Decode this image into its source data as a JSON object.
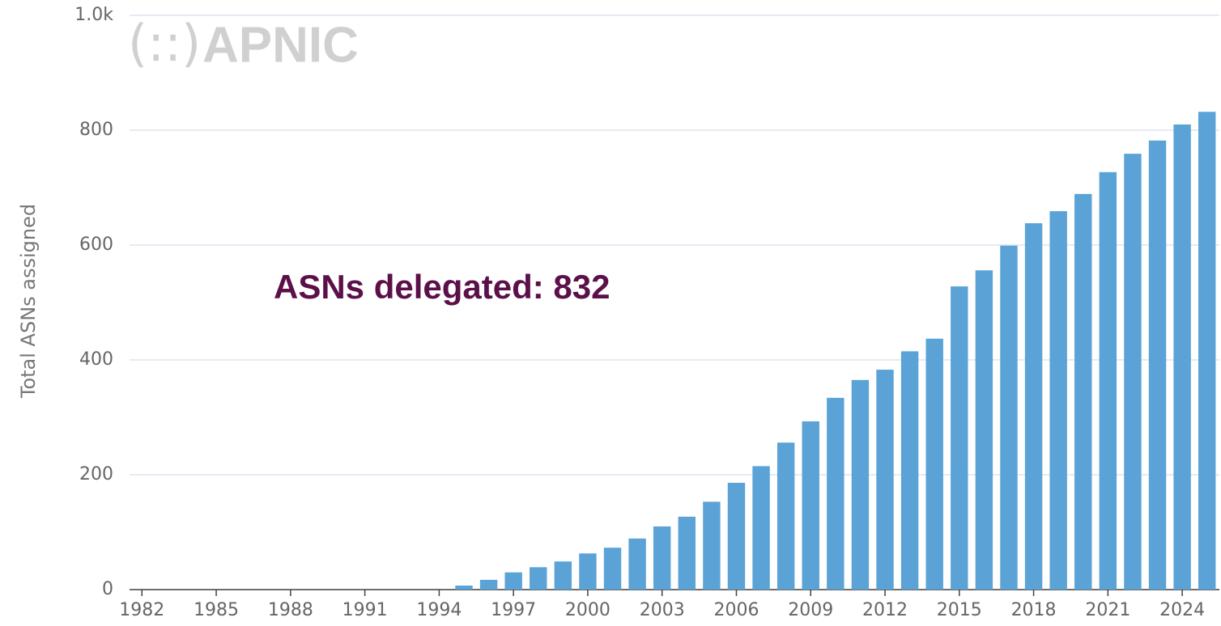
{
  "chart_data": {
    "type": "bar",
    "logo": "APNIC",
    "annotation": "ASNs delegated: 832",
    "y_label": "Total ASNs assigned",
    "categories": [
      "1982",
      null,
      null,
      "1985",
      null,
      null,
      "1988",
      null,
      null,
      "1991",
      null,
      null,
      "1994",
      null,
      null,
      "1997",
      null,
      null,
      "2000",
      null,
      null,
      "2003",
      null,
      null,
      "2006",
      null,
      null,
      "2009",
      null,
      null,
      "2012",
      null,
      null,
      "2015",
      null,
      null,
      "2018",
      null,
      null,
      "2021",
      null,
      null,
      "2024",
      null
    ],
    "values": [
      0,
      0,
      0,
      0,
      0,
      0,
      0,
      0,
      0,
      0,
      0,
      0,
      0,
      7,
      17,
      30,
      39,
      49,
      63,
      73,
      89,
      110,
      127,
      153,
      186,
      215,
      256,
      293,
      334,
      365,
      383,
      415,
      437,
      528,
      556,
      599,
      638,
      659,
      689,
      727,
      759,
      782,
      810,
      832
    ],
    "color": "#5ba3d6",
    "ylim": [
      0,
      1000
    ],
    "yticks": [
      0,
      200,
      400,
      600,
      800,
      {
        "value": 1000,
        "label": "1.0k"
      }
    ],
    "grid": true
  }
}
